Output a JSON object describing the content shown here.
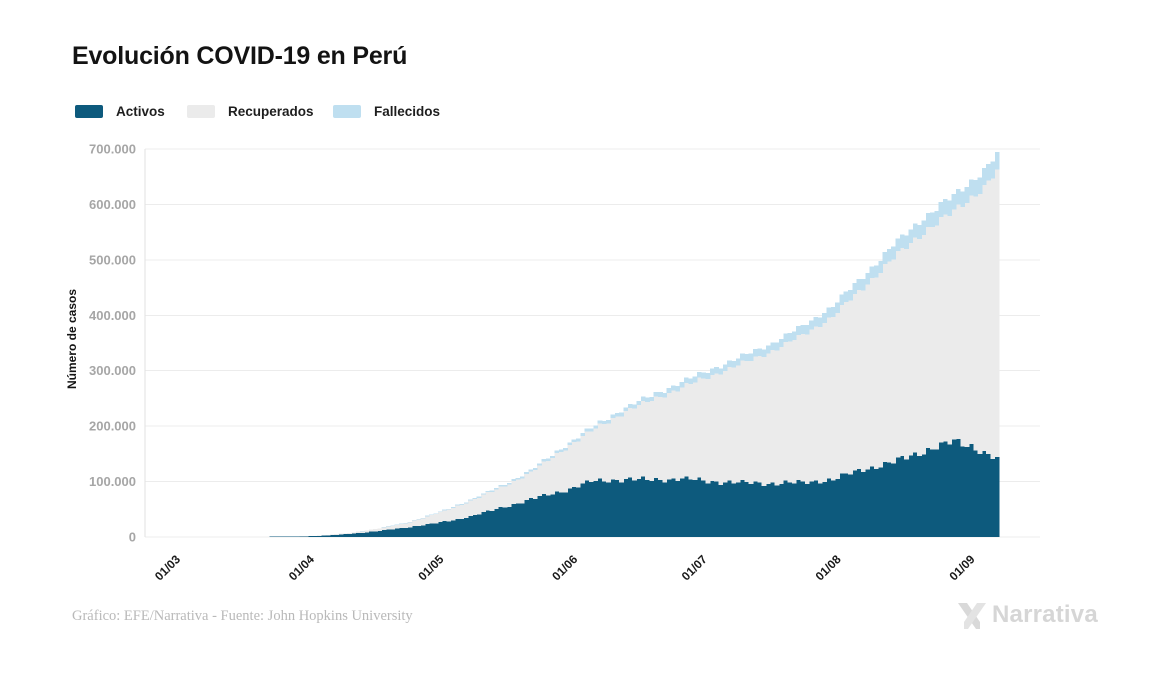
{
  "header": {
    "title": "Evolución COVID-19 en Perú"
  },
  "legend": {
    "items": [
      {
        "label": "Activos",
        "color": "#0d5a7d"
      },
      {
        "label": "Recuperados",
        "color": "#ebebeb"
      },
      {
        "label": "Fallecidos",
        "color": "#bfdff0"
      }
    ]
  },
  "footer": {
    "credit": "Gráfico: EFE/Narrativa - Fuente: John Hopkins University",
    "logo_text": "Narrativa"
  },
  "colors": {
    "gridline": "#ececec",
    "axis_line": "#e2e2e2",
    "y_tick_text": "#a6a6a6",
    "x_tick_text": "#1a1a1a",
    "logo_gray": "#d6d6d6"
  },
  "chart_data": {
    "type": "bar",
    "stacked": true,
    "title": "Evolución COVID-19 en Perú",
    "xlabel": "",
    "ylabel": "Número de casos",
    "ylim": [
      0,
      700000
    ],
    "grid": "horizontal",
    "legend_position": "top-left",
    "y_tick_labels": [
      "0",
      "100.000",
      "200.000",
      "300.000",
      "400.000",
      "500.000",
      "600.000",
      "700.000"
    ],
    "x_tick_labels": [
      "01/03",
      "01/04",
      "01/05",
      "01/06",
      "01/07",
      "01/08",
      "01/09"
    ],
    "date_range": {
      "start": "01/03",
      "end": "09/09",
      "total_days": 193
    },
    "series": [
      {
        "name": "Activos",
        "color": "#0d5a7d"
      },
      {
        "name": "Recuperados",
        "color": "#ebebeb"
      },
      {
        "name": "Fallecidos",
        "color": "#bfdff0"
      }
    ],
    "anchors": [
      {
        "date": "01/03",
        "day": 0,
        "activos": 0,
        "recuperados": 0,
        "fallecidos": 0
      },
      {
        "date": "15/03",
        "day": 14,
        "activos": 40,
        "recuperados": 5,
        "fallecidos": 1
      },
      {
        "date": "22/03",
        "day": 21,
        "activos": 300,
        "recuperados": 50,
        "fallecidos": 9
      },
      {
        "date": "29/03",
        "day": 28,
        "activos": 700,
        "recuperados": 120,
        "fallecidos": 30
      },
      {
        "date": "05/04",
        "day": 35,
        "activos": 1800,
        "recuperados": 600,
        "fallecidos": 80
      },
      {
        "date": "12/04",
        "day": 42,
        "activos": 5500,
        "recuperados": 1800,
        "fallecidos": 190
      },
      {
        "date": "19/04",
        "day": 49,
        "activos": 11000,
        "recuperados": 4200,
        "fallecidos": 400
      },
      {
        "date": "26/04",
        "day": 56,
        "activos": 18000,
        "recuperados": 8800,
        "fallecidos": 700
      },
      {
        "date": "03/05",
        "day": 63,
        "activos": 26000,
        "recuperados": 18000,
        "fallecidos": 1300
      },
      {
        "date": "10/05",
        "day": 70,
        "activos": 37000,
        "recuperados": 28000,
        "fallecidos": 1900
      },
      {
        "date": "17/05",
        "day": 77,
        "activos": 52000,
        "recuperados": 37000,
        "fallecidos": 2600
      },
      {
        "date": "24/05",
        "day": 84,
        "activos": 68000,
        "recuperados": 48000,
        "fallecidos": 3500
      },
      {
        "date": "31/05",
        "day": 91,
        "activos": 82000,
        "recuperados": 73000,
        "fallecidos": 4500
      },
      {
        "date": "07/06",
        "day": 98,
        "activos": 100000,
        "recuperados": 91000,
        "fallecidos": 5500
      },
      {
        "date": "14/06",
        "day": 105,
        "activos": 104000,
        "recuperados": 119000,
        "fallecidos": 6500
      },
      {
        "date": "21/06",
        "day": 112,
        "activos": 103000,
        "recuperados": 144000,
        "fallecidos": 8000
      },
      {
        "date": "28/06",
        "day": 119,
        "activos": 105000,
        "recuperados": 165000,
        "fallecidos": 9500
      },
      {
        "date": "05/07",
        "day": 126,
        "activos": 100000,
        "recuperados": 192000,
        "fallecidos": 11000
      },
      {
        "date": "12/07",
        "day": 133,
        "activos": 98000,
        "recuperados": 215000,
        "fallecidos": 12500
      },
      {
        "date": "19/07",
        "day": 140,
        "activos": 97000,
        "recuperados": 239000,
        "fallecidos": 14000
      },
      {
        "date": "26/07",
        "day": 147,
        "activos": 98000,
        "recuperados": 266000,
        "fallecidos": 16000
      },
      {
        "date": "02/08",
        "day": 154,
        "activos": 104000,
        "recuperados": 295000,
        "fallecidos": 18000
      },
      {
        "date": "09/08",
        "day": 161,
        "activos": 122000,
        "recuperados": 328000,
        "fallecidos": 20500
      },
      {
        "date": "16/08",
        "day": 168,
        "activos": 135000,
        "recuperados": 368000,
        "fallecidos": 23000
      },
      {
        "date": "23/08",
        "day": 175,
        "activos": 155000,
        "recuperados": 396000,
        "fallecidos": 25500
      },
      {
        "date": "30/08",
        "day": 182,
        "activos": 172000,
        "recuperados": 415000,
        "fallecidos": 28000
      },
      {
        "date": "03/09",
        "day": 186,
        "activos": 165000,
        "recuperados": 448000,
        "fallecidos": 29000
      },
      {
        "date": "06/09",
        "day": 189,
        "activos": 152000,
        "recuperados": 480000,
        "fallecidos": 30000
      },
      {
        "date": "09/09",
        "day": 192,
        "activos": 140000,
        "recuperados": 519000,
        "fallecidos": 31000
      }
    ]
  }
}
